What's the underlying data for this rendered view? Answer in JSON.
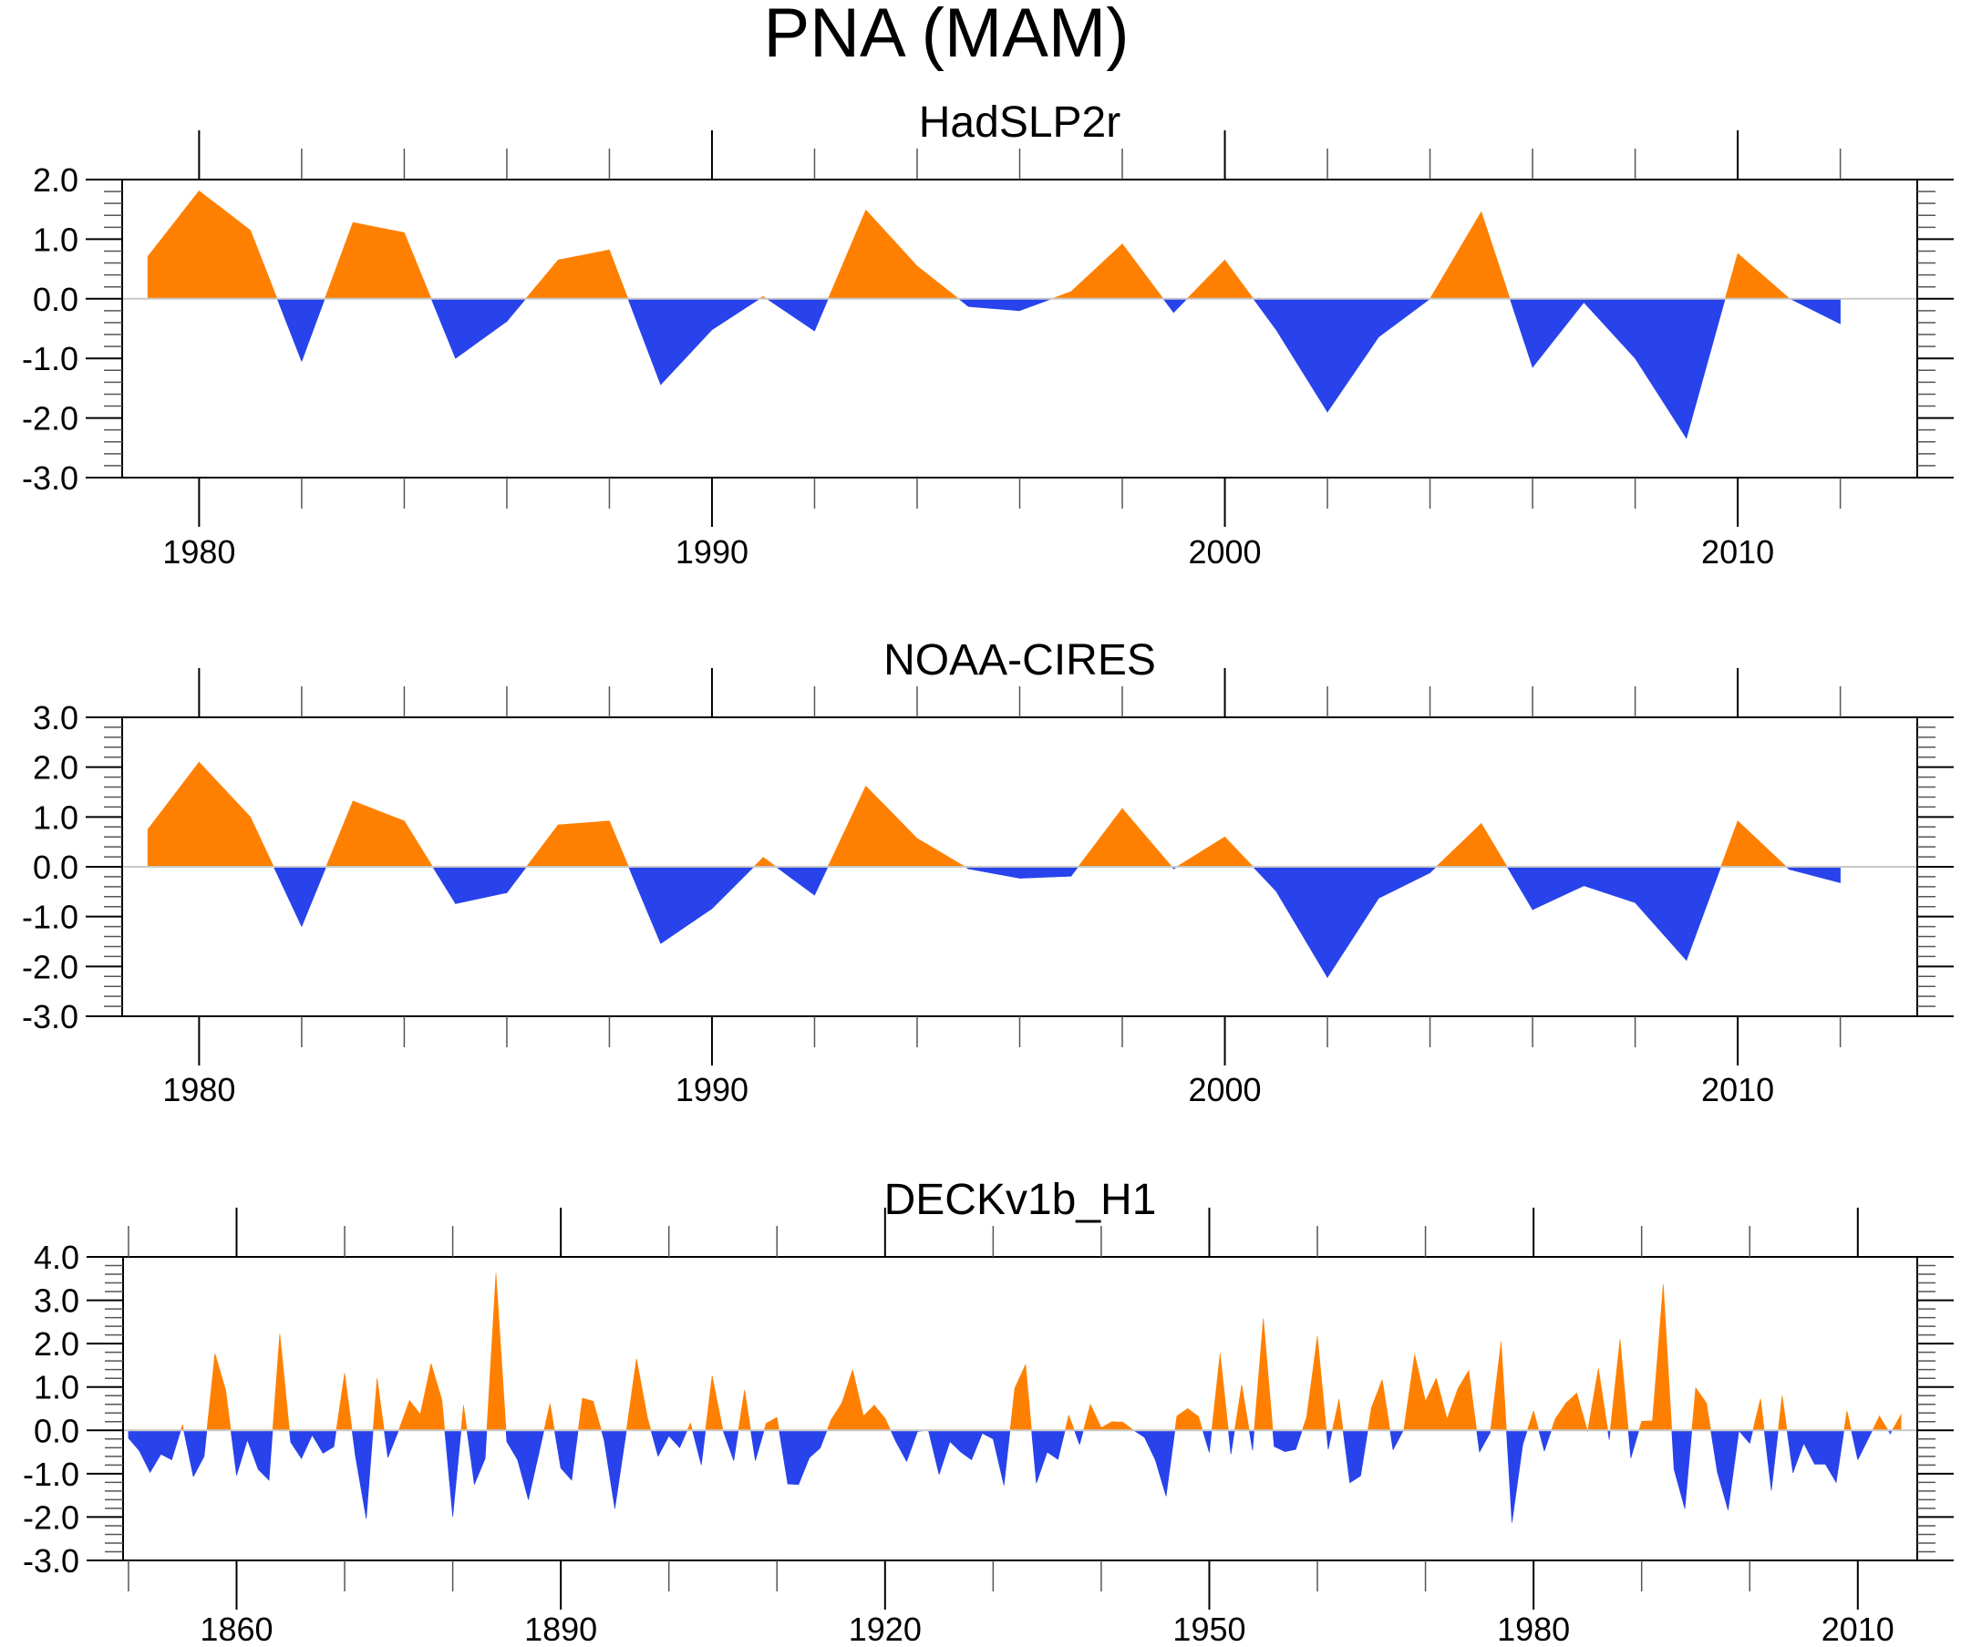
{
  "figure": {
    "title": "PNA (MAM)"
  },
  "colors": {
    "positive": "#ff8000",
    "negative": "#2843eb"
  },
  "chart_data": [
    {
      "type": "area",
      "title": "HadSLP2r",
      "xlabel": "",
      "ylabel": "",
      "xlim": [
        1978.5,
        2013.5
      ],
      "ylim": [
        -3.0,
        2.0
      ],
      "x_major_ticks": [
        1980,
        1990,
        2000,
        2010
      ],
      "x_major_labels": [
        "1980",
        "1990",
        "2000",
        "2010"
      ],
      "x_minor_step": 2,
      "y_major_ticks": [
        -3.0,
        -2.0,
        -1.0,
        0.0,
        1.0,
        2.0
      ],
      "y_major_labels": [
        "-3.0",
        "-2.0",
        "-1.0",
        "0.0",
        "1.0",
        "2.0"
      ],
      "y_minor_step": 0.2,
      "reference_line": 0.0,
      "fill_above": "positive",
      "fill_below": "negative",
      "x": [
        1979,
        1980,
        1981,
        1982,
        1983,
        1984,
        1985,
        1986,
        1987,
        1988,
        1989,
        1990,
        1991,
        1992,
        1993,
        1994,
        1995,
        1996,
        1997,
        1998,
        1999,
        2000,
        2001,
        2002,
        2003,
        2004,
        2005,
        2006,
        2007,
        2008,
        2009,
        2010,
        2011,
        2012
      ],
      "values": [
        0.71,
        1.81,
        1.15,
        -1.05,
        1.28,
        1.11,
        -1.0,
        -0.38,
        0.65,
        0.82,
        -1.44,
        -0.52,
        0.04,
        -0.54,
        1.49,
        0.55,
        -0.13,
        -0.2,
        0.12,
        0.92,
        -0.23,
        0.65,
        -0.52,
        -1.9,
        -0.64,
        0.0,
        1.46,
        -1.15,
        -0.06,
        -1.0,
        -2.34,
        0.76,
        0.01,
        -0.42
      ]
    },
    {
      "type": "area",
      "title": "NOAA-CIRES",
      "xlabel": "",
      "ylabel": "",
      "xlim": [
        1978.5,
        2013.5
      ],
      "ylim": [
        -3.0,
        3.0
      ],
      "x_major_ticks": [
        1980,
        1990,
        2000,
        2010
      ],
      "x_major_labels": [
        "1980",
        "1990",
        "2000",
        "2010"
      ],
      "x_minor_step": 2,
      "y_major_ticks": [
        -3.0,
        -2.0,
        -1.0,
        0.0,
        1.0,
        2.0,
        3.0
      ],
      "y_major_labels": [
        "-3.0",
        "-2.0",
        "-1.0",
        "0.0",
        "1.0",
        "2.0",
        "3.0"
      ],
      "y_minor_step": 0.2,
      "reference_line": 0.0,
      "fill_above": "positive",
      "fill_below": "negative",
      "x": [
        1979,
        1980,
        1981,
        1982,
        1983,
        1984,
        1985,
        1986,
        1987,
        1988,
        1989,
        1990,
        1991,
        1992,
        1993,
        1994,
        1995,
        1996,
        1997,
        1998,
        1999,
        2000,
        2001,
        2002,
        2003,
        2004,
        2005,
        2006,
        2007,
        2008,
        2009,
        2010,
        2011,
        2012
      ],
      "values": [
        0.75,
        2.1,
        1.0,
        -1.2,
        1.32,
        0.92,
        -0.74,
        -0.52,
        0.84,
        0.92,
        -1.54,
        -0.84,
        0.19,
        -0.57,
        1.62,
        0.57,
        -0.04,
        -0.23,
        -0.19,
        1.17,
        -0.04,
        0.6,
        -0.49,
        -2.22,
        -0.63,
        -0.12,
        0.87,
        -0.86,
        -0.38,
        -0.72,
        -1.88,
        0.92,
        -0.05,
        -0.32
      ]
    },
    {
      "type": "area",
      "title": "DECKv1b_H1",
      "xlabel": "",
      "ylabel": "",
      "xlim": [
        1849.5,
        2015.5
      ],
      "ylim": [
        -3.0,
        4.0
      ],
      "x_major_ticks": [
        1860,
        1890,
        1920,
        1950,
        1980,
        2010
      ],
      "x_major_labels": [
        "1860",
        "1890",
        "1920",
        "1950",
        "1980",
        "2010"
      ],
      "x_minor_step": 10,
      "y_major_ticks": [
        -3.0,
        -2.0,
        -1.0,
        0.0,
        1.0,
        2.0,
        3.0,
        4.0
      ],
      "y_major_labels": [
        "-3.0",
        "-2.0",
        "-1.0",
        "0.0",
        "1.0",
        "2.0",
        "3.0",
        "4.0"
      ],
      "y_minor_step": 0.2,
      "reference_line": 0.0,
      "fill_above": "positive",
      "fill_below": "negative",
      "x_start": 1850,
      "x_end": 2014,
      "values": [
        -0.18,
        -0.47,
        -0.97,
        -0.55,
        -0.68,
        0.13,
        -1.07,
        -0.6,
        1.77,
        0.92,
        -1.04,
        -0.22,
        -0.9,
        -1.15,
        2.23,
        -0.27,
        -0.65,
        -0.11,
        -0.53,
        -0.38,
        1.32,
        -0.6,
        -2.04,
        1.2,
        -0.63,
        0.0,
        0.69,
        0.37,
        1.54,
        0.7,
        -1.99,
        0.58,
        -1.25,
        -0.65,
        3.62,
        -0.26,
        -0.68,
        -1.6,
        -0.5,
        0.62,
        -0.87,
        -1.15,
        0.74,
        0.67,
        -0.22,
        -1.81,
        -0.13,
        1.65,
        0.31,
        -0.6,
        -0.13,
        -0.4,
        0.17,
        -0.8,
        1.26,
        0.0,
        -0.7,
        0.93,
        -0.7,
        0.16,
        0.3,
        -1.24,
        -1.25,
        -0.63,
        -0.41,
        0.24,
        0.63,
        1.4,
        0.33,
        0.58,
        0.28,
        -0.26,
        -0.72,
        -0.03,
        0.01,
        -1.02,
        -0.26,
        -0.5,
        -0.68,
        -0.07,
        -0.2,
        -1.27,
        0.97,
        1.52,
        -1.22,
        -0.5,
        -0.67,
        0.35,
        -0.33,
        0.6,
        0.06,
        0.2,
        0.19,
        0.0,
        -0.16,
        -0.68,
        -1.52,
        0.33,
        0.5,
        0.32,
        -0.51,
        1.77,
        -0.55,
        1.05,
        -0.46,
        2.58,
        -0.37,
        -0.49,
        -0.44,
        0.3,
        2.17,
        -0.44,
        0.72,
        -1.21,
        -1.05,
        0.52,
        1.17,
        -0.45,
        0.02,
        1.75,
        0.67,
        1.2,
        0.26,
        0.96,
        1.38,
        -0.5,
        -0.05,
        2.05,
        -2.13,
        -0.33,
        0.45,
        -0.48,
        0.26,
        0.63,
        0.86,
        -0.03,
        1.43,
        -0.22,
        2.1,
        -0.64,
        0.21,
        0.22,
        3.37,
        -0.9,
        -1.81,
        0.98,
        0.63,
        -0.96,
        -1.84,
        -0.01,
        -0.3,
        0.73,
        -1.39,
        0.8,
        -0.98,
        -0.3,
        -0.78,
        -0.78,
        -1.2,
        0.45,
        -0.68,
        -0.18,
        0.33,
        -0.08,
        0.36
      ]
    }
  ]
}
